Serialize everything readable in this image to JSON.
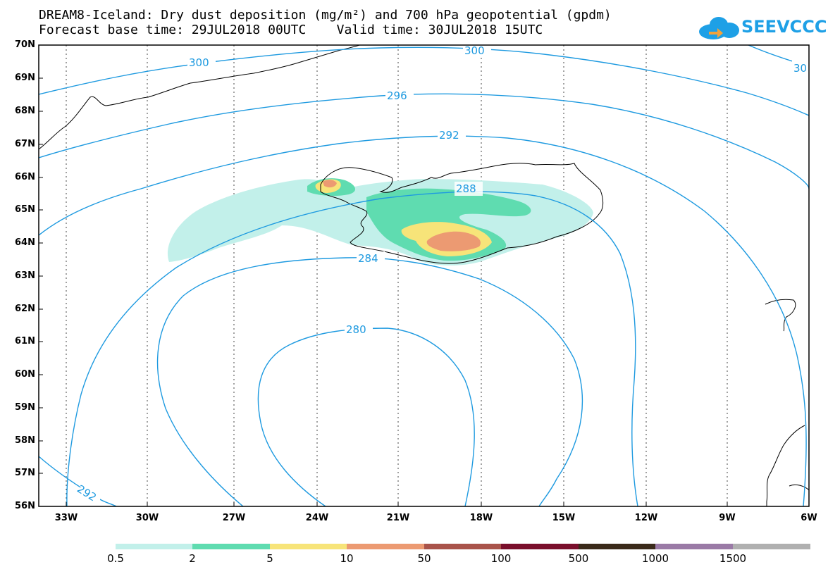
{
  "header": {
    "line1": "DREAM8-Iceland: Dry dust deposition (mg/m²) and 700 hPa geopotential (gpdm)",
    "line2": "Forecast base time: 29JUL2018 00UTC    Valid time: 30JUL2018 15UTC"
  },
  "logo": {
    "text": "SEEVCCC",
    "icon": "cloud-icon",
    "color": "#1ea0e6"
  },
  "axes": {
    "lat_labels": [
      "70N",
      "69N",
      "68N",
      "67N",
      "66N",
      "65N",
      "64N",
      "63N",
      "62N",
      "61N",
      "60N",
      "59N",
      "58N",
      "57N",
      "56N"
    ],
    "lon_labels": [
      "33W",
      "30W",
      "27W",
      "24W",
      "21W",
      "18W",
      "15W",
      "12W",
      "9W",
      "6W"
    ]
  },
  "contours": {
    "color": "#1e9ae0",
    "labels": [
      "300",
      "300",
      "30",
      "296",
      "292",
      "288",
      "284",
      "280",
      "292"
    ]
  },
  "colorbar": {
    "labels": [
      "0.5",
      "2",
      "5",
      "10",
      "50",
      "100",
      "500",
      "1000",
      "1500"
    ],
    "colors": [
      "#c2f0ea",
      "#5fdcb0",
      "#f7e479",
      "#ec9a72",
      "#a9534a",
      "#7a0f2c",
      "#3a2a1a",
      "#9a7aa6",
      "#b0b0b0"
    ]
  }
}
